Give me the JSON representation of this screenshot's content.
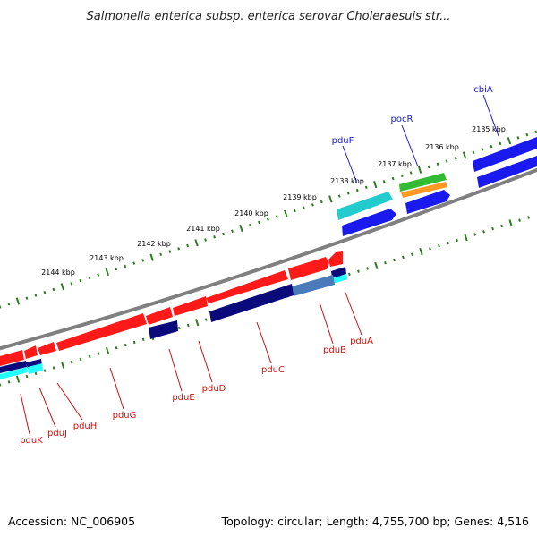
{
  "title": "Salmonella enterica subsp. enterica serovar Choleraesuis str...",
  "footer": {
    "accession": "Accession: NC_006905",
    "summary": "Topology: circular; Length: 4,755,700 bp; Genes: 4,516"
  },
  "colors": {
    "background": "#ffffff",
    "backbone": "#808080",
    "ruler_dots": "#2e7d1f",
    "upper_label": "#1a1acc",
    "lower_label": "#cc1111",
    "red_gene": "#ff1a1a",
    "navy_gene": "#0a0a7a",
    "blue_gene": "#1a1aee",
    "cyan_gene": "#22cccc",
    "green_gene": "#33bb33",
    "orange_gene": "#ff9922",
    "steel_gene": "#4a7aba",
    "light_cyan_gene": "#22ffff"
  },
  "ruler_ticks": [
    "2135 kbp",
    "2136 kbp",
    "2137 kbp",
    "2138 kbp",
    "2139 kbp",
    "2140 kbp",
    "2141 kbp",
    "2142 kbp",
    "2143 kbp",
    "2144 kbp"
  ],
  "upper_genes": [
    "cbiA",
    "pocR",
    "pduF"
  ],
  "lower_genes": [
    "pduA",
    "pduB",
    "pduC",
    "pduD",
    "pduE",
    "pduG",
    "pduH",
    "pduJ",
    "pduK"
  ]
}
